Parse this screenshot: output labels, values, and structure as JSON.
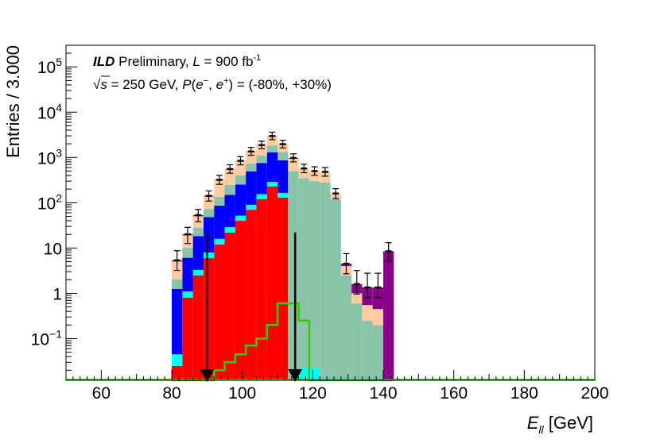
{
  "chart_data": {
    "type": "bar",
    "stacked": true,
    "log_scale_y": true,
    "xlabel": "E_ll [GeV]",
    "xlabel_main": "E",
    "xlabel_sub": "ll",
    "xlabel_unit": " [GeV]",
    "ylabel": "Entries / 3.000",
    "xlim": [
      50,
      200
    ],
    "ylim": [
      0.012,
      300000
    ],
    "x_ticks": [
      60,
      80,
      100,
      120,
      140,
      160,
      180,
      200
    ],
    "y_ticks": [
      {
        "value": 0.1,
        "base": "10",
        "exp": "−1"
      },
      {
        "value": 1,
        "base": "1",
        "exp": ""
      },
      {
        "value": 10,
        "base": "10",
        "exp": ""
      },
      {
        "value": 100,
        "base": "10",
        "exp": "2"
      },
      {
        "value": 1000,
        "base": "10",
        "exp": "3"
      },
      {
        "value": 10000,
        "base": "10",
        "exp": "4"
      },
      {
        "value": 100000,
        "base": "10",
        "exp": "5"
      }
    ],
    "annotation": {
      "ild": "ILD",
      "prelim": " Preliminary, ",
      "lumi_symbol": "L",
      "lumi_value": " = 900 fb",
      "lumi_exp": "-1",
      "sqrt_symbol": "√",
      "s_symbol": "s",
      "energy": " = 250 GeV, ",
      "pol_symbol": "P",
      "pol_open": "(",
      "em": "e",
      "em_sup": "−",
      "sep": ", ",
      "ep": "e",
      "ep_sup": "+",
      "pol_values": ") = (-80%, +30%)"
    },
    "bin_edges": [
      80,
      83,
      86,
      89,
      92,
      95,
      98,
      101,
      104,
      107,
      110,
      113,
      116,
      119,
      122,
      125,
      128,
      131,
      134,
      137,
      140,
      143
    ],
    "series": [
      {
        "color": "#ff0000",
        "values": [
          0.025,
          0.8,
          2.5,
          6,
          12,
          22,
          40,
          70,
          120,
          230,
          130,
          0,
          0.012,
          0.012,
          0,
          0,
          0,
          0,
          0,
          0,
          0
        ]
      },
      {
        "color": "#00ffff",
        "values": [
          0.02,
          0.3,
          0.8,
          2,
          4,
          7,
          12,
          20,
          35,
          60,
          35,
          0,
          0.01,
          0.01,
          0,
          0,
          0,
          0,
          0,
          0,
          0
        ]
      },
      {
        "color": "#0000ff",
        "values": [
          1.2,
          5,
          15,
          40,
          70,
          120,
          200,
          400,
          600,
          1000,
          700,
          0,
          0,
          0,
          0,
          0,
          0,
          0,
          0,
          0,
          0
        ]
      },
      {
        "color": "#88c4a8",
        "values": [
          0.8,
          4,
          10,
          25,
          50,
          100,
          150,
          250,
          350,
          550,
          450,
          500,
          350,
          300,
          280,
          120,
          2.5,
          0.6,
          0.25,
          0.2,
          0
        ]
      },
      {
        "color": "#ffcca0",
        "values": [
          3,
          9,
          22,
          65,
          180,
          300,
          430,
          600,
          750,
          1100,
          630,
          450,
          220,
          200,
          200,
          40,
          1.5,
          0.4,
          0.3,
          0.25,
          0
        ]
      },
      {
        "color": "#8b008b",
        "values": [
          0.3,
          1,
          3,
          4,
          5,
          6,
          10,
          15,
          20,
          30,
          20,
          25,
          0,
          0,
          0,
          0,
          0.5,
          0.6,
          0.8,
          0.9,
          8.5
        ]
      }
    ],
    "error_bar_bins": [
      0,
      1,
      2,
      3,
      4,
      5,
      6,
      7,
      8,
      9,
      10,
      11,
      12,
      13,
      14,
      15,
      16,
      17,
      18,
      19,
      20
    ],
    "signal_outline": {
      "color": "#33cc00",
      "values": [
        0,
        0,
        0,
        0.006,
        0.02,
        0.03,
        0.045,
        0.07,
        0.1,
        0.2,
        0.6,
        0.6,
        0.25,
        0,
        0,
        0,
        0,
        0,
        0,
        0,
        0
      ]
    },
    "cut_arrows": [
      90,
      115
    ],
    "grid": false,
    "legend": "none"
  }
}
